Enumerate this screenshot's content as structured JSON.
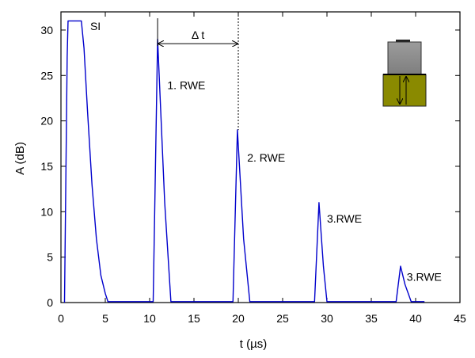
{
  "chart_data": {
    "type": "line",
    "xlabel": "t  (µs)",
    "ylabel": "A  (dB)",
    "xlim": [
      0,
      45
    ],
    "ylim": [
      0,
      32
    ],
    "x_ticks": [
      0,
      5,
      10,
      15,
      20,
      25,
      30,
      35,
      40,
      45
    ],
    "y_ticks": [
      0,
      5,
      10,
      15,
      20,
      25,
      30
    ],
    "grid": false,
    "line_color": "#0000cc",
    "series": [
      {
        "x": [
          0.4,
          0.7,
          0.8,
          2.3,
          2.6,
          3.0,
          3.5,
          4.0,
          4.5,
          5.0,
          5.3,
          10.4,
          10.9,
          11.7,
          12.4,
          19.4,
          19.9,
          20.6,
          21.3,
          28.6,
          29.1,
          29.6,
          30.0,
          37.8,
          38.3,
          38.8,
          39.5,
          41.0
        ],
        "y": [
          0,
          27,
          31,
          31,
          28,
          21,
          13,
          7,
          3,
          1,
          0.1,
          0.1,
          29,
          11,
          0.1,
          0.1,
          19,
          7,
          0.1,
          0.1,
          11,
          4,
          0.1,
          0.1,
          4,
          2,
          0.1,
          0.1
        ]
      }
    ],
    "annotations": [
      {
        "text": "SI",
        "x": 3.3,
        "y": 30
      },
      {
        "text": "1. RWE",
        "x": 12.0,
        "y": 23.5
      },
      {
        "text": "2. RWE",
        "x": 21.0,
        "y": 15.5
      },
      {
        "text": "3.RWE",
        "x": 30.0,
        "y": 8.8
      },
      {
        "text": "3.RWE",
        "x": 39.0,
        "y": 2.4
      }
    ],
    "delta_t": {
      "label": "Δ t",
      "x_start": 10.9,
      "x_end": 20.0,
      "y": 28.5,
      "dashed_down_to_y": 19
    }
  },
  "inset": {
    "upper_block_color": "#909090",
    "lower_block_color": "#8a8a00"
  }
}
